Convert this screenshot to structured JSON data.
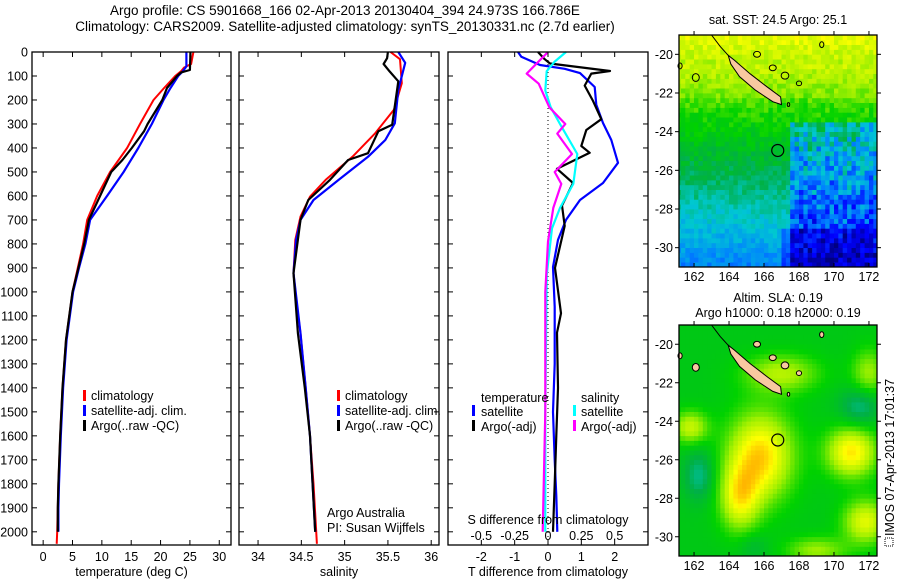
{
  "header": {
    "title_line1": "Argo profile: CS 5901668_166 02-Apr-2013 20130404_394 24.973S 166.786E",
    "title_line2": "Climatology: CARS2009. Satellite-adjusted climatology: synTS_20130331.nc (2.7d earlier)"
  },
  "credit": {
    "line1": "Argo Australia",
    "line2": "PI: Susan Wijffels"
  },
  "timestamp": "IMOS 07-Apr-2013 17:01:37",
  "chart_data": [
    {
      "type": "line",
      "id": "temperature",
      "xlabel": "temperature (deg C)",
      "xlim": [
        -1.9,
        32
      ],
      "ylim": [
        2055,
        0
      ],
      "xticks": [
        0,
        5,
        10,
        15,
        20,
        25,
        30
      ],
      "yticks": [
        0,
        100,
        200,
        300,
        400,
        500,
        600,
        700,
        800,
        900,
        1000,
        1100,
        1200,
        1300,
        1400,
        1500,
        1600,
        1700,
        1800,
        1900,
        2000
      ],
      "legend": [
        "climatology",
        "satellite-adj. clim.",
        "Argo(..raw -QC)"
      ],
      "series": [
        {
          "name": "climatology",
          "color": "#ff0000",
          "points": [
            [
              0,
              25.6
            ],
            [
              50,
              25.2
            ],
            [
              65,
              24
            ],
            [
              80,
              23.5
            ],
            [
              100,
              22.5
            ],
            [
              150,
              20.6
            ],
            [
              200,
              18.8
            ],
            [
              300,
              16.5
            ],
            [
              400,
              14.3
            ],
            [
              500,
              11.4
            ],
            [
              600,
              9.2
            ],
            [
              700,
              7.5
            ],
            [
              800,
              6.8
            ],
            [
              900,
              5.9
            ],
            [
              1000,
              5.0
            ],
            [
              1200,
              3.9
            ],
            [
              1400,
              3.3
            ],
            [
              1600,
              2.9
            ],
            [
              1800,
              2.6
            ],
            [
              2000,
              2.4
            ],
            [
              2050,
              2.3
            ]
          ]
        },
        {
          "name": "satellite-adj. clim.",
          "color": "#0000ff",
          "points": [
            [
              0,
              24.4
            ],
            [
              60,
              24.4
            ],
            [
              80,
              23.8
            ],
            [
              100,
              23
            ],
            [
              150,
              21.7
            ],
            [
              200,
              20.5
            ],
            [
              300,
              18.5
            ],
            [
              400,
              16.2
            ],
            [
              500,
              13.7
            ],
            [
              600,
              10.9
            ],
            [
              700,
              8
            ],
            [
              800,
              7.2
            ],
            [
              900,
              6.1
            ],
            [
              1000,
              5.1
            ],
            [
              1200,
              4.0
            ],
            [
              1400,
              3.4
            ],
            [
              1600,
              3.0
            ],
            [
              1800,
              2.7
            ],
            [
              1900,
              2.6
            ],
            [
              2000,
              2.6
            ]
          ]
        },
        {
          "name": "Argo(..raw -QC)",
          "color": "#000000",
          "points": [
            [
              0,
              25.1
            ],
            [
              75,
              25.0
            ],
            [
              85,
              23.5
            ],
            [
              100,
              22.8
            ],
            [
              150,
              21.1
            ],
            [
              200,
              20.3
            ],
            [
              300,
              17.8
            ],
            [
              330,
              17.2
            ],
            [
              400,
              15.1
            ],
            [
              450,
              13.5
            ],
            [
              500,
              11.6
            ],
            [
              600,
              9.7
            ],
            [
              700,
              7.8
            ],
            [
              800,
              7.0
            ],
            [
              900,
              6.0
            ],
            [
              1000,
              5.0
            ],
            [
              1200,
              3.9
            ],
            [
              1400,
              3.3
            ],
            [
              1600,
              2.9
            ],
            [
              1800,
              2.6
            ],
            [
              1900,
              2.5
            ],
            [
              2000,
              2.5
            ]
          ]
        }
      ]
    },
    {
      "type": "line",
      "id": "salinity",
      "xlabel": "salinity",
      "xlim": [
        33.78,
        36.09
      ],
      "ylim": [
        2055,
        0
      ],
      "xticks": [
        34,
        34.5,
        35,
        35.5,
        36
      ],
      "legend": [
        "climatology",
        "satellite-adj. clim.",
        "Argo(..raw -QC)"
      ],
      "series": [
        {
          "name": "climatology",
          "color": "#ff0000",
          "points": [
            [
              0,
              35.53
            ],
            [
              30,
              35.64
            ],
            [
              130,
              35.66
            ],
            [
              240,
              35.57
            ],
            [
              340,
              35.35
            ],
            [
              437,
              35.09
            ],
            [
              533,
              34.78
            ],
            [
              603,
              34.6
            ],
            [
              686,
              34.49
            ],
            [
              783,
              34.43
            ],
            [
              922,
              34.41
            ],
            [
              1061,
              34.45
            ],
            [
              1172,
              34.49
            ],
            [
              1400,
              34.55
            ],
            [
              1600,
              34.6
            ],
            [
              1800,
              34.64
            ],
            [
              2050,
              34.68
            ]
          ]
        },
        {
          "name": "satellite-adj. clim.",
          "color": "#0000ff",
          "points": [
            [
              0,
              35.62
            ],
            [
              45,
              35.7
            ],
            [
              158,
              35.62
            ],
            [
              297,
              35.58
            ],
            [
              367,
              35.47
            ],
            [
              437,
              35.27
            ],
            [
              533,
              34.93
            ],
            [
              617,
              34.64
            ],
            [
              700,
              34.49
            ],
            [
              783,
              34.44
            ],
            [
              922,
              34.41
            ],
            [
              1172,
              34.49
            ],
            [
              1400,
              34.55
            ],
            [
              1600,
              34.6
            ],
            [
              1800,
              34.63
            ],
            [
              2000,
              34.66
            ]
          ]
        },
        {
          "name": "Argo(..raw -QC)",
          "color": "#000000",
          "points": [
            [
              0,
              35.5
            ],
            [
              26,
              35.49
            ],
            [
              50,
              35.45
            ],
            [
              81,
              35.52
            ],
            [
              122,
              35.62
            ],
            [
              303,
              35.55
            ],
            [
              330,
              35.39
            ],
            [
              422,
              35.27
            ],
            [
              450,
              35.04
            ],
            [
              533,
              34.83
            ],
            [
              617,
              34.58
            ],
            [
              700,
              34.49
            ],
            [
              922,
              34.41
            ],
            [
              1172,
              34.46
            ],
            [
              1400,
              34.54
            ],
            [
              1600,
              34.6
            ],
            [
              1800,
              34.63
            ],
            [
              2000,
              34.66
            ]
          ]
        }
      ]
    },
    {
      "type": "line",
      "id": "difference",
      "xlabel": "T difference from climatology",
      "x2label": "S difference from climatology",
      "xlim": [
        -3,
        3
      ],
      "x2lim": [
        -0.75,
        0.75
      ],
      "ylim": [
        2055,
        0
      ],
      "xticks": [
        -2,
        -1,
        0,
        1,
        2
      ],
      "x2ticks": [
        -0.5,
        -0.25,
        0,
        0.25,
        0.5
      ],
      "legend": {
        "temperature_header": "temperature",
        "salinity_header": "salinity",
        "satellite": "satellite",
        "argo": "Argo(-adj)"
      },
      "series": [
        {
          "name": "temperature satellite",
          "axis": "T",
          "color": "#0000ff",
          "points": [
            [
              0,
              -0.9
            ],
            [
              20,
              -0.8
            ],
            [
              54,
              -0.24
            ],
            [
              70,
              0.5
            ],
            [
              88,
              0.96
            ],
            [
              146,
              1.4
            ],
            [
              220,
              1.45
            ],
            [
              296,
              1.65
            ],
            [
              367,
              1.9
            ],
            [
              462,
              2.1
            ],
            [
              546,
              1.65
            ],
            [
              617,
              0.96
            ],
            [
              700,
              0.54
            ],
            [
              783,
              0.3
            ],
            [
              896,
              0.15
            ],
            [
              1062,
              0.2
            ],
            [
              1300,
              0.2
            ],
            [
              1500,
              0.15
            ],
            [
              1700,
              0.2
            ],
            [
              1850,
              0.25
            ],
            [
              2000,
              0.28
            ]
          ]
        },
        {
          "name": "temperature Argo(-adj)",
          "axis": "T",
          "color": "#000000",
          "points": [
            [
              0,
              -0.3
            ],
            [
              30,
              -0.1
            ],
            [
              48,
              0.06
            ],
            [
              79,
              1.86
            ],
            [
              90,
              1.3
            ],
            [
              140,
              1.1
            ],
            [
              204,
              1.35
            ],
            [
              280,
              1.6
            ],
            [
              325,
              1.15
            ],
            [
              392,
              1.0
            ],
            [
              420,
              1.25
            ],
            [
              487,
              0.27
            ],
            [
              546,
              0.75
            ],
            [
              640,
              0.42
            ],
            [
              725,
              0.5
            ],
            [
              900,
              0.21
            ],
            [
              1089,
              0.39
            ],
            [
              1170,
              0.27
            ],
            [
              1400,
              0.3
            ],
            [
              1600,
              0.25
            ],
            [
              1800,
              0.2
            ],
            [
              2000,
              0.15
            ]
          ]
        },
        {
          "name": "salinity satellite",
          "axis": "S",
          "color": "#00ffff",
          "points": [
            [
              0,
              0.135
            ],
            [
              40,
              0.05
            ],
            [
              80,
              -0.01
            ],
            [
              160,
              -0.02
            ],
            [
              230,
              0.02
            ],
            [
              300,
              0.09
            ],
            [
              425,
              0.22
            ],
            [
              550,
              0.19
            ],
            [
              650,
              0.09
            ],
            [
              735,
              0.03
            ],
            [
              930,
              -0.01
            ],
            [
              1500,
              -0.02
            ],
            [
              2000,
              -0.02
            ]
          ]
        },
        {
          "name": "salinity Argo(-adj)",
          "axis": "S",
          "color": "#ff00ff",
          "points": [
            [
              0,
              0
            ],
            [
              45,
              -0.08
            ],
            [
              90,
              -0.16
            ],
            [
              132,
              -0.07
            ],
            [
              230,
              0.01
            ],
            [
              300,
              0.13
            ],
            [
              340,
              0.07
            ],
            [
              425,
              0.18
            ],
            [
              500,
              0.05
            ],
            [
              550,
              0.1
            ],
            [
              650,
              0.04
            ],
            [
              790,
              0
            ],
            [
              1000,
              -0.02
            ],
            [
              1500,
              -0.02
            ],
            [
              2000,
              -0.04
            ]
          ]
        }
      ]
    },
    {
      "type": "heatmap",
      "id": "sst-map",
      "title": "sat. SST: 24.5 Argo: 25.1",
      "xlim": [
        161.14,
        172.46
      ],
      "ylim": [
        -31,
        -19
      ],
      "xticks": [
        162,
        164,
        166,
        168,
        170,
        172
      ],
      "yticks": [
        -20,
        -22,
        -24,
        -26,
        -28,
        -30
      ],
      "float_position": {
        "lon": 166.786,
        "lat": -24.973
      }
    },
    {
      "type": "heatmap",
      "id": "sla-map",
      "title_line1": "Altim. SLA: 0.19",
      "title_line2": "Argo h1000: 0.18 h2000: 0.19",
      "xlim": [
        161.14,
        172.46
      ],
      "ylim": [
        -31,
        -19
      ],
      "xticks": [
        162,
        164,
        166,
        168,
        170,
        172
      ],
      "yticks": [
        -20,
        -22,
        -24,
        -26,
        -28,
        -30
      ],
      "float_position": {
        "lon": 166.786,
        "lat": -24.973
      }
    }
  ]
}
